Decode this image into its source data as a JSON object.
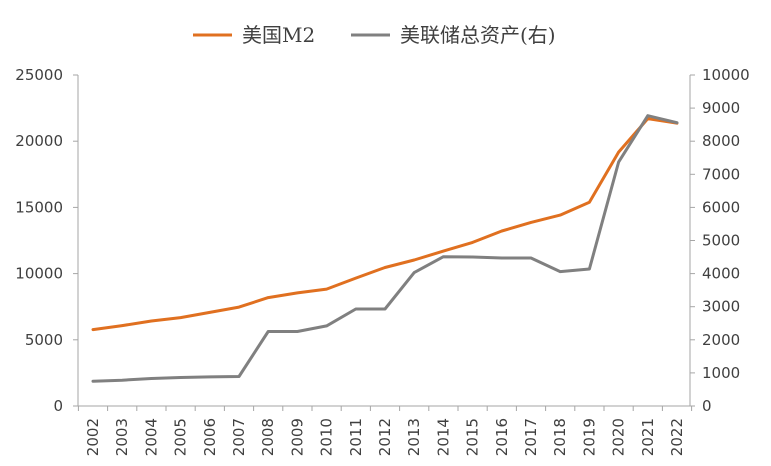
{
  "chart_data": {
    "type": "line",
    "categories": [
      "2002",
      "2003",
      "2004",
      "2005",
      "2006",
      "2007",
      "2008",
      "2009",
      "2010",
      "2011",
      "2012",
      "2013",
      "2014",
      "2015",
      "2016",
      "2017",
      "2018",
      "2019",
      "2020",
      "2021",
      "2022"
    ],
    "series": [
      {
        "name": "美国M2",
        "axis": "left",
        "color": "#E07020",
        "values": [
          5770,
          6070,
          6420,
          6680,
          7070,
          7470,
          8190,
          8540,
          8830,
          9660,
          10460,
          11030,
          11700,
          12360,
          13220,
          13870,
          14420,
          15390,
          19180,
          21700,
          21360
        ]
      },
      {
        "name": "美联储总资产(右)",
        "axis": "right",
        "color": "#808080",
        "values": [
          750,
          780,
          830,
          860,
          880,
          890,
          2250,
          2250,
          2420,
          2930,
          2930,
          4030,
          4510,
          4500,
          4470,
          4470,
          4060,
          4140,
          7370,
          8770,
          8560
        ]
      }
    ],
    "y_left": {
      "min": 0,
      "max": 25000,
      "ticks": [
        0,
        5000,
        10000,
        15000,
        20000,
        25000
      ]
    },
    "y_right": {
      "min": 0,
      "max": 10000,
      "ticks": [
        0,
        1000,
        2000,
        3000,
        4000,
        5000,
        6000,
        7000,
        8000,
        9000,
        10000
      ]
    },
    "grid": false,
    "legend_position": "top"
  }
}
